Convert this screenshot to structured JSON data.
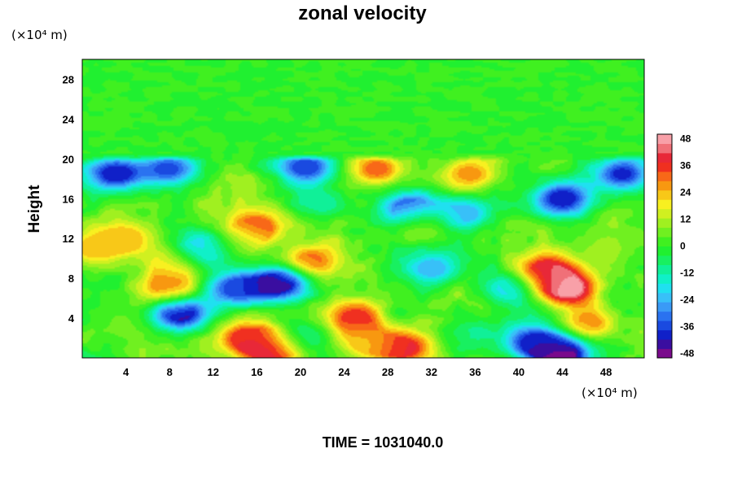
{
  "chart_data": {
    "type": "heatmap",
    "title": "zonal velocity",
    "ylabel": "Height",
    "xlabel": "",
    "x_unit": "(×10⁴ m)",
    "y_unit": "(×10⁴ m)",
    "xlim": [
      0,
      51.5
    ],
    "ylim": [
      0,
      30
    ],
    "x_ticks": [
      4,
      8,
      12,
      16,
      20,
      24,
      28,
      32,
      36,
      40,
      44,
      48
    ],
    "y_ticks": [
      4,
      8,
      12,
      16,
      20,
      24,
      28
    ],
    "colorbar": {
      "min": -48,
      "max": 48,
      "ticks": [
        48,
        36,
        24,
        12,
        0,
        -12,
        -24,
        -36,
        -48
      ],
      "step": 4,
      "colors": [
        "#7a0a8c",
        "#3a0ea0",
        "#1020c8",
        "#1a4ae0",
        "#2a72f0",
        "#3a9af6",
        "#38c0f8",
        "#20e0f0",
        "#10f0c8",
        "#10f098",
        "#18f060",
        "#20f030",
        "#40f020",
        "#70f020",
        "#a0f020",
        "#d0f020",
        "#f8f020",
        "#f8c818",
        "#f89810",
        "#f86818",
        "#f03020",
        "#e82838",
        "#f07078",
        "#f8a0a8"
      ]
    },
    "background_value": 0,
    "features": [
      {
        "x": 44.5,
        "y": 7.0,
        "value": 48
      },
      {
        "x": 42.5,
        "y": 8.8,
        "value": 40
      },
      {
        "x": 46.5,
        "y": 3.5,
        "value": 26
      },
      {
        "x": 17.5,
        "y": 1.0,
        "value": 46
      },
      {
        "x": 15.0,
        "y": 2.0,
        "value": 34
      },
      {
        "x": 29.5,
        "y": 1.0,
        "value": 38
      },
      {
        "x": 26.0,
        "y": 1.5,
        "value": 20
      },
      {
        "x": 25.0,
        "y": 4.0,
        "value": 36
      },
      {
        "x": 8.0,
        "y": 7.0,
        "value": 32
      },
      {
        "x": 8.0,
        "y": 9.5,
        "value": 18
      },
      {
        "x": 14.5,
        "y": 11.5,
        "value": 8
      },
      {
        "x": 16.0,
        "y": 13.2,
        "value": 34
      },
      {
        "x": 21.0,
        "y": 9.8,
        "value": 30
      },
      {
        "x": 27.0,
        "y": 19.0,
        "value": 30
      },
      {
        "x": 35.5,
        "y": 18.5,
        "value": 26
      },
      {
        "x": 4.0,
        "y": 12.0,
        "value": 24
      },
      {
        "x": 31.0,
        "y": 13.5,
        "value": 16
      },
      {
        "x": 1.0,
        "y": 11.0,
        "value": 22
      },
      {
        "x": 18.0,
        "y": 7.5,
        "value": -46
      },
      {
        "x": 14.0,
        "y": 7.0,
        "value": -34
      },
      {
        "x": 9.0,
        "y": 4.5,
        "value": -44
      },
      {
        "x": 44.0,
        "y": 0.3,
        "value": -48
      },
      {
        "x": 41.5,
        "y": 1.6,
        "value": -38
      },
      {
        "x": 3.0,
        "y": 18.5,
        "value": -40
      },
      {
        "x": 8.0,
        "y": 19.0,
        "value": -32
      },
      {
        "x": 20.5,
        "y": 19.2,
        "value": -36
      },
      {
        "x": 35.0,
        "y": 14.5,
        "value": -24
      },
      {
        "x": 44.0,
        "y": 16.0,
        "value": -40
      },
      {
        "x": 49.5,
        "y": 18.5,
        "value": -36
      },
      {
        "x": 30.0,
        "y": 15.0,
        "value": -38
      },
      {
        "x": 32.0,
        "y": 9.0,
        "value": -24
      },
      {
        "x": 20.0,
        "y": 2.0,
        "value": -16
      },
      {
        "x": 11.0,
        "y": 11.0,
        "value": -24
      },
      {
        "x": 39.0,
        "y": 7.0,
        "value": -18
      },
      {
        "x": 4.0,
        "y": 3.0,
        "value": 6
      },
      {
        "x": 36.0,
        "y": 2.5,
        "value": -8
      },
      {
        "x": 22.0,
        "y": 15.5,
        "value": -10
      },
      {
        "x": 48.0,
        "y": 11.0,
        "value": 10
      }
    ]
  },
  "footer": {
    "time_label": "TIME = 1031040.0"
  }
}
